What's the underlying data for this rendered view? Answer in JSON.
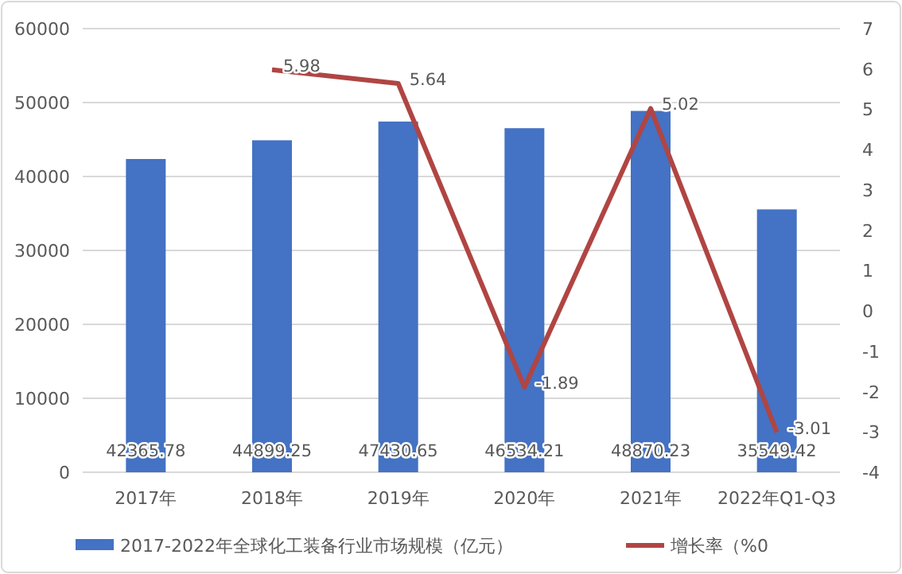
{
  "chart_data": {
    "type": "bar",
    "categories": [
      "2017年",
      "2018年",
      "2019年",
      "2020年",
      "2021年",
      "2022年Q1-Q3"
    ],
    "series": [
      {
        "name": "2017-2022年全球化工装备行业市场规模（亿元）",
        "color": "#4472c4",
        "values": [
          42365.78,
          44899.25,
          47430.65,
          46534.21,
          48870.23,
          35549.42
        ]
      },
      {
        "name": "增长率（%0",
        "type": "line",
        "axis": "y2",
        "color": "#b04543",
        "values": [
          null,
          5.98,
          5.64,
          -1.89,
          5.02,
          -3.01
        ]
      }
    ],
    "ylim": [
      0,
      60000
    ],
    "yticks": [
      0,
      10000,
      20000,
      30000,
      40000,
      50000,
      60000
    ],
    "y2lim": [
      -4,
      7
    ],
    "y2ticks": [
      -4,
      -3,
      -2,
      -1,
      0,
      1,
      2,
      3,
      4,
      5,
      6,
      7
    ],
    "grid": "y",
    "legend": "bottom",
    "data_labels": true,
    "marker": "none",
    "line_style": "solid"
  }
}
